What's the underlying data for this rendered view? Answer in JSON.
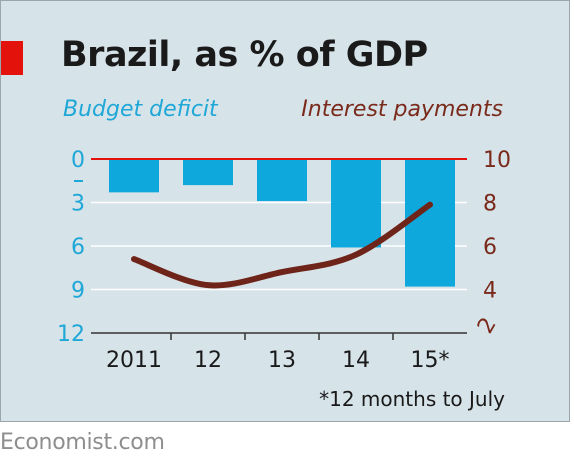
{
  "title": "Brazil, as % of GDP",
  "brand": "Economist.com",
  "footnote": "*12 months to July",
  "colors": {
    "bar": "#0fa8dc",
    "line": "#6f2419",
    "zero_line": "#e3120b",
    "grid": "#ffffff",
    "left_axis_text": "#1ea7d7",
    "right_axis_text": "#7a2a1b"
  },
  "chart_data": {
    "type": "bar+line",
    "categories": [
      "2011",
      "12",
      "13",
      "14",
      "15*"
    ],
    "left_axis": {
      "label": "Budget deficit",
      "ticks": [
        "0",
        "3",
        "6",
        "9",
        "12"
      ],
      "range": [
        0,
        12
      ],
      "inverted": true
    },
    "right_axis": {
      "label": "Interest payments",
      "ticks": [
        "10",
        "8",
        "6",
        "4",
        "2"
      ],
      "range": [
        2,
        10
      ]
    },
    "series": [
      {
        "name": "Budget deficit",
        "type": "bar",
        "axis": "left",
        "values": [
          2.3,
          1.8,
          2.9,
          6.1,
          8.8
        ]
      },
      {
        "name": "Interest payments",
        "type": "line",
        "axis": "right",
        "values": [
          5.4,
          4.2,
          4.8,
          5.6,
          7.9
        ]
      }
    ],
    "grid": true
  }
}
